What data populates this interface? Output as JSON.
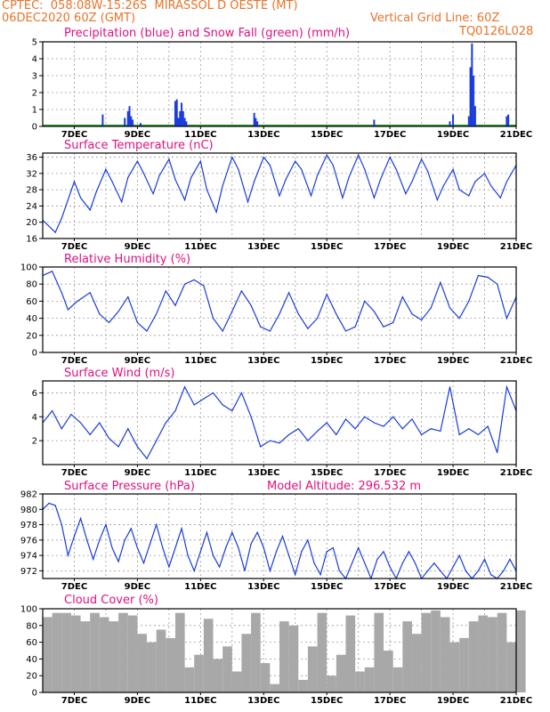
{
  "header": {
    "line1": "CPTEC:  058:08W-15:26S  MIRASSOL D OESTE (MT)",
    "line2": "06DEC2020 60Z (GMT)",
    "grid_note": "Vertical Grid Line: 60Z",
    "code": "TQ0126L028",
    "model_altitude_label": "Model Altitude: 296.532 m"
  },
  "colors": {
    "title": "#e0117f",
    "header": "#e8732a",
    "line": "#1a3cdc",
    "snow": "#2e9e2e",
    "cloud": "#a8a8a8"
  },
  "chart_data": [
    {
      "type": "bar",
      "title": "Precipitation (blue) and Snow Fall (green) (mm/h)",
      "x_labels": [
        "7DEC",
        "9DEC",
        "11DEC",
        "13DEC",
        "15DEC",
        "17DEC",
        "19DEC",
        "21DEC"
      ],
      "x_range": [
        6,
        21
      ],
      "ylim": [
        0,
        5
      ],
      "yticks": [
        0,
        1,
        2,
        3,
        4,
        5
      ],
      "grid": true,
      "x": [
        7.9,
        8.6,
        8.7,
        8.75,
        8.8,
        8.85,
        9.1,
        10.2,
        10.25,
        10.3,
        10.35,
        10.4,
        10.45,
        10.5,
        10.55,
        12.7,
        12.75,
        12.8,
        16.5,
        18.9,
        19.0,
        19.5,
        19.55,
        19.6,
        19.65,
        19.7,
        20.7,
        20.75
      ],
      "values": [
        0.7,
        0.5,
        0.9,
        1.2,
        0.6,
        0.4,
        0.2,
        1.5,
        1.6,
        0.5,
        0.9,
        1.4,
        0.9,
        0.5,
        0.3,
        0.8,
        0.5,
        0.3,
        0.4,
        0.3,
        0.7,
        0.6,
        3.5,
        4.9,
        3.0,
        1.2,
        0.6,
        0.7
      ],
      "snow": 0
    },
    {
      "type": "line",
      "title": "Surface Temperature (nC)",
      "x_labels": [
        "7DEC",
        "9DEC",
        "11DEC",
        "13DEC",
        "15DEC",
        "17DEC",
        "19DEC",
        "21DEC"
      ],
      "x_range": [
        6,
        21
      ],
      "ylim": [
        16,
        37
      ],
      "yticks": [
        16,
        20,
        24,
        28,
        32,
        36
      ],
      "grid": true,
      "x": [
        6.0,
        6.4,
        6.6,
        7.0,
        7.2,
        7.5,
        7.7,
        8.0,
        8.2,
        8.5,
        8.7,
        9.0,
        9.2,
        9.5,
        9.7,
        10.0,
        10.2,
        10.5,
        10.7,
        11.0,
        11.2,
        11.5,
        11.7,
        12.0,
        12.2,
        12.5,
        12.7,
        13.0,
        13.2,
        13.5,
        13.7,
        14.0,
        14.2,
        14.5,
        14.7,
        15.0,
        15.2,
        15.5,
        15.7,
        16.0,
        16.2,
        16.5,
        16.7,
        17.0,
        17.2,
        17.5,
        17.7,
        18.0,
        18.2,
        18.5,
        18.7,
        19.0,
        19.2,
        19.5,
        19.7,
        20.0,
        20.2,
        20.5,
        20.7,
        21.0
      ],
      "values": [
        20.5,
        17.5,
        21.0,
        30.0,
        26.0,
        23.0,
        27.5,
        33.0,
        30.0,
        25.0,
        31.0,
        35.0,
        32.0,
        27.0,
        31.5,
        35.5,
        30.5,
        25.5,
        31.0,
        35.0,
        28.0,
        22.5,
        29.0,
        36.0,
        33.0,
        25.0,
        30.0,
        36.0,
        34.0,
        26.5,
        30.5,
        35.0,
        33.0,
        26.5,
        31.5,
        36.5,
        34.0,
        26.0,
        31.0,
        36.5,
        33.0,
        26.0,
        30.5,
        36.0,
        33.0,
        27.0,
        30.0,
        35.5,
        32.5,
        25.5,
        29.0,
        33.0,
        28.0,
        26.5,
        30.0,
        32.0,
        29.0,
        26.0,
        30.0,
        34.0
      ]
    },
    {
      "type": "line",
      "title": "Relative Humidity (%)",
      "x_labels": [
        "7DEC",
        "9DEC",
        "11DEC",
        "13DEC",
        "15DEC",
        "17DEC",
        "19DEC",
        "21DEC"
      ],
      "x_range": [
        6,
        21
      ],
      "ylim": [
        0,
        100
      ],
      "yticks": [
        0,
        20,
        40,
        60,
        80,
        100
      ],
      "grid": true,
      "x": [
        6.0,
        6.3,
        6.6,
        6.8,
        7.1,
        7.5,
        7.8,
        8.1,
        8.4,
        8.7,
        9.0,
        9.3,
        9.6,
        9.9,
        10.2,
        10.5,
        10.8,
        11.1,
        11.4,
        11.7,
        12.0,
        12.3,
        12.6,
        12.9,
        13.2,
        13.5,
        13.8,
        14.1,
        14.4,
        14.7,
        15.0,
        15.3,
        15.6,
        15.9,
        16.2,
        16.5,
        16.8,
        17.1,
        17.4,
        17.7,
        18.0,
        18.3,
        18.6,
        18.9,
        19.2,
        19.5,
        19.8,
        20.1,
        20.4,
        20.7,
        21.0
      ],
      "values": [
        90,
        95,
        70,
        50,
        60,
        70,
        45,
        35,
        48,
        65,
        35,
        25,
        45,
        72,
        55,
        80,
        85,
        78,
        40,
        25,
        48,
        72,
        55,
        30,
        25,
        45,
        70,
        45,
        28,
        40,
        68,
        45,
        25,
        30,
        60,
        48,
        30,
        35,
        65,
        45,
        38,
        52,
        82,
        52,
        40,
        60,
        90,
        88,
        80,
        40,
        65
      ]
    },
    {
      "type": "line",
      "title": "Surface Wind (m/s)",
      "x_labels": [
        "7DEC",
        "9DEC",
        "11DEC",
        "13DEC",
        "15DEC",
        "17DEC",
        "19DEC",
        "21DEC"
      ],
      "x_range": [
        6,
        21
      ],
      "ylim": [
        0,
        7
      ],
      "yticks": [
        2,
        4,
        6
      ],
      "grid": true,
      "x": [
        6.0,
        6.3,
        6.6,
        6.9,
        7.2,
        7.5,
        7.8,
        8.1,
        8.4,
        8.7,
        9.0,
        9.3,
        9.6,
        9.9,
        10.2,
        10.5,
        10.8,
        11.1,
        11.4,
        11.7,
        12.0,
        12.3,
        12.6,
        12.9,
        13.2,
        13.5,
        13.8,
        14.1,
        14.4,
        14.7,
        15.0,
        15.3,
        15.6,
        15.9,
        16.2,
        16.5,
        16.8,
        17.1,
        17.4,
        17.7,
        18.0,
        18.3,
        18.6,
        18.9,
        19.2,
        19.5,
        19.8,
        20.1,
        20.4,
        20.7,
        21.0
      ],
      "values": [
        3.5,
        4.5,
        3.0,
        4.2,
        3.5,
        2.5,
        3.5,
        2.2,
        1.5,
        3.0,
        1.5,
        0.5,
        2.0,
        3.5,
        4.5,
        6.5,
        5.0,
        5.5,
        6.0,
        5.0,
        4.5,
        6.0,
        4.0,
        1.5,
        2.0,
        1.8,
        2.5,
        3.0,
        2.0,
        2.8,
        3.5,
        2.5,
        3.8,
        3.0,
        4.0,
        3.5,
        3.2,
        4.0,
        3.0,
        3.8,
        2.5,
        3.0,
        2.8,
        6.5,
        2.5,
        3.0,
        2.5,
        3.2,
        1.0,
        6.5,
        4.5
      ]
    },
    {
      "type": "line",
      "title": "Surface Pressure (hPa)",
      "x_labels": [
        "7DEC",
        "9DEC",
        "11DEC",
        "13DEC",
        "15DEC",
        "17DEC",
        "19DEC",
        "21DEC"
      ],
      "x_range": [
        6,
        21
      ],
      "ylim": [
        971,
        982
      ],
      "yticks": [
        972,
        974,
        976,
        978,
        980,
        982
      ],
      "grid": true,
      "x": [
        6.0,
        6.2,
        6.4,
        6.6,
        6.8,
        7.0,
        7.2,
        7.4,
        7.6,
        7.8,
        8.0,
        8.2,
        8.4,
        8.6,
        8.8,
        9.0,
        9.2,
        9.4,
        9.6,
        9.8,
        10.0,
        10.2,
        10.4,
        10.6,
        10.8,
        11.0,
        11.2,
        11.4,
        11.6,
        11.8,
        12.0,
        12.2,
        12.4,
        12.6,
        12.8,
        13.0,
        13.2,
        13.4,
        13.6,
        13.8,
        14.0,
        14.2,
        14.4,
        14.6,
        14.8,
        15.0,
        15.2,
        15.4,
        15.6,
        15.8,
        16.0,
        16.2,
        16.4,
        16.6,
        16.8,
        17.0,
        17.2,
        17.4,
        17.6,
        17.8,
        18.0,
        18.2,
        18.4,
        18.6,
        18.8,
        19.0,
        19.2,
        19.4,
        19.6,
        19.8,
        20.0,
        20.2,
        20.4,
        20.6,
        20.8,
        21.0
      ],
      "values": [
        980.0,
        980.8,
        980.5,
        978.0,
        974.0,
        976.5,
        978.8,
        976.0,
        973.5,
        976.0,
        978.0,
        975.0,
        973.2,
        976.0,
        977.5,
        975.0,
        973.0,
        975.5,
        978.0,
        975.0,
        972.5,
        975.0,
        977.5,
        974.0,
        972.0,
        974.5,
        977.0,
        974.0,
        972.5,
        975.0,
        977.0,
        975.0,
        972.0,
        975.5,
        977.0,
        975.0,
        972.0,
        974.5,
        976.5,
        974.0,
        971.5,
        974.5,
        976.0,
        973.0,
        971.5,
        974.5,
        975.0,
        972.0,
        971.0,
        973.0,
        975.0,
        973.0,
        971.0,
        973.5,
        974.5,
        972.5,
        971.0,
        973.0,
        974.5,
        973.0,
        971.0,
        972.0,
        973.0,
        972.0,
        971.0,
        972.5,
        974.0,
        972.0,
        971.0,
        972.0,
        973.5,
        971.5,
        971.0,
        972.0,
        973.5,
        972.0
      ]
    },
    {
      "type": "area",
      "title": "Cloud Cover (%)",
      "x_labels": [
        "7DEC",
        "9DEC",
        "11DEC",
        "13DEC",
        "15DEC",
        "17DEC",
        "19DEC",
        "21DEC"
      ],
      "x_range": [
        6,
        21
      ],
      "ylim": [
        0,
        100
      ],
      "yticks": [
        0,
        20,
        40,
        60,
        80,
        100
      ],
      "grid": true,
      "x": [
        6.0,
        6.3,
        6.6,
        6.9,
        7.2,
        7.5,
        7.8,
        8.1,
        8.4,
        8.7,
        9.0,
        9.3,
        9.6,
        9.9,
        10.2,
        10.5,
        10.8,
        11.1,
        11.4,
        11.7,
        12.0,
        12.3,
        12.6,
        12.9,
        13.2,
        13.5,
        13.8,
        14.1,
        14.4,
        14.7,
        15.0,
        15.3,
        15.6,
        15.9,
        16.2,
        16.5,
        16.8,
        17.1,
        17.4,
        17.7,
        18.0,
        18.3,
        18.6,
        18.9,
        19.2,
        19.5,
        19.8,
        20.1,
        20.4,
        20.7,
        21.0
      ],
      "values": [
        90,
        95,
        95,
        92,
        85,
        95,
        90,
        85,
        95,
        92,
        70,
        60,
        75,
        65,
        95,
        30,
        45,
        88,
        40,
        55,
        25,
        70,
        95,
        35,
        10,
        85,
        80,
        15,
        55,
        95,
        20,
        45,
        92,
        25,
        30,
        95,
        50,
        30,
        85,
        70,
        95,
        98,
        90,
        60,
        65,
        85,
        92,
        90,
        95,
        60,
        98
      ]
    }
  ]
}
